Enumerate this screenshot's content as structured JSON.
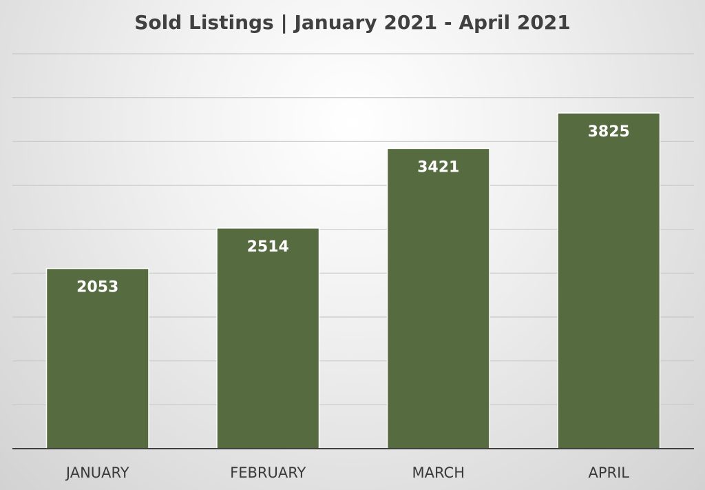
{
  "chart_data": {
    "type": "bar",
    "title": "Sold Listings | January 2021 - April 2021",
    "categories": [
      "JANUARY",
      "FEBRUARY",
      "MARCH",
      "APRIL"
    ],
    "values": [
      2053,
      2514,
      3421,
      3825
    ],
    "ylim": [
      0,
      4500
    ],
    "y_gridline_step": 500,
    "grid": true,
    "legend": "none",
    "colors": {
      "bar": "#566b40",
      "bar_border": "#ffffff",
      "data_label": "#ffffff",
      "gridline": "#c8c8c8",
      "axis": "#404040",
      "tick_label": "#3a3a3a",
      "title": "#404040"
    }
  }
}
